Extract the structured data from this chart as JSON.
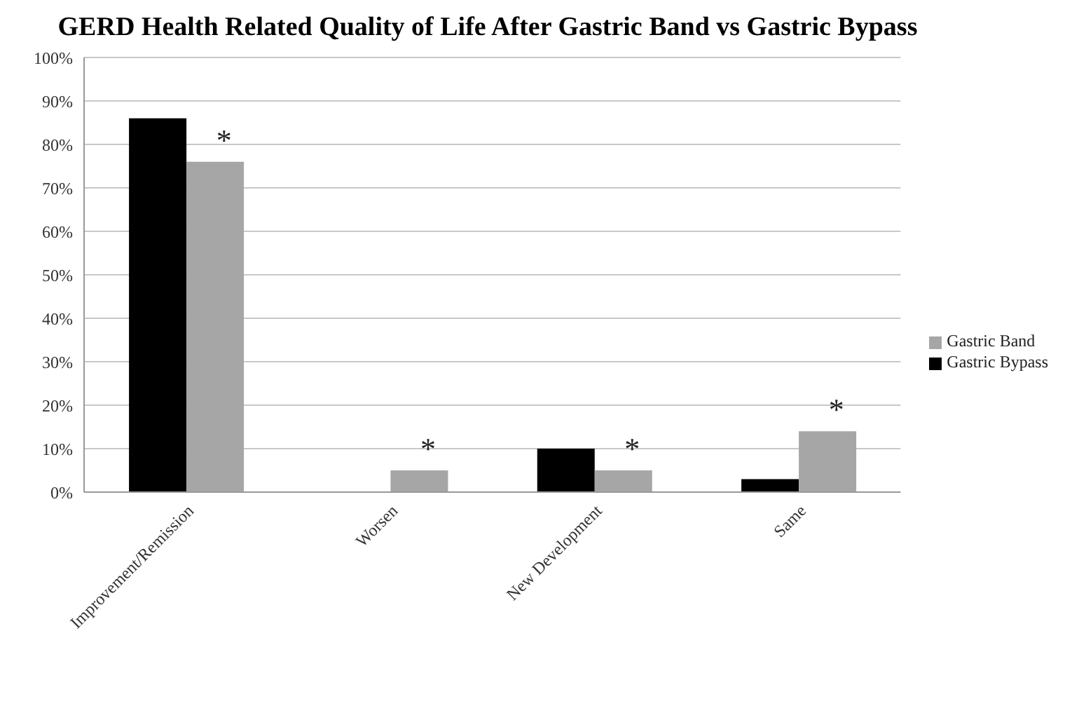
{
  "chart_data": {
    "type": "bar",
    "title": "GERD Health Related Quality of Life After Gastric Band vs Gastric Bypass",
    "categories": [
      "Improvement/Remission",
      "Worsen",
      "New Development",
      "Same"
    ],
    "series": [
      {
        "name": "Gastric Bypass",
        "color": "#000000",
        "values": [
          86,
          0,
          10,
          3
        ]
      },
      {
        "name": "Gastric Band",
        "color": "#a6a6a6",
        "values": [
          76,
          5,
          5,
          14
        ]
      }
    ],
    "ylim": [
      0,
      100
    ],
    "yticks": [
      {
        "value": 0,
        "label": "0%"
      },
      {
        "value": 10,
        "label": "10%"
      },
      {
        "value": 20,
        "label": "20%"
      },
      {
        "value": 30,
        "label": "30%"
      },
      {
        "value": 40,
        "label": "40%"
      },
      {
        "value": 50,
        "label": "50%"
      },
      {
        "value": 60,
        "label": "60%"
      },
      {
        "value": 70,
        "label": "70%"
      },
      {
        "value": 80,
        "label": "80%"
      },
      {
        "value": 90,
        "label": "90%"
      },
      {
        "value": 100,
        "label": "100%"
      }
    ],
    "grid": "y",
    "legend": "right",
    "annotations": [
      {
        "text": "*",
        "x": "Improvement/Remission",
        "y": 76
      },
      {
        "text": "*",
        "x": "Worsen",
        "y": 5
      },
      {
        "text": "*",
        "x": "New Development",
        "y": 5
      },
      {
        "text": "*",
        "x": "Same",
        "y": 14
      }
    ]
  }
}
